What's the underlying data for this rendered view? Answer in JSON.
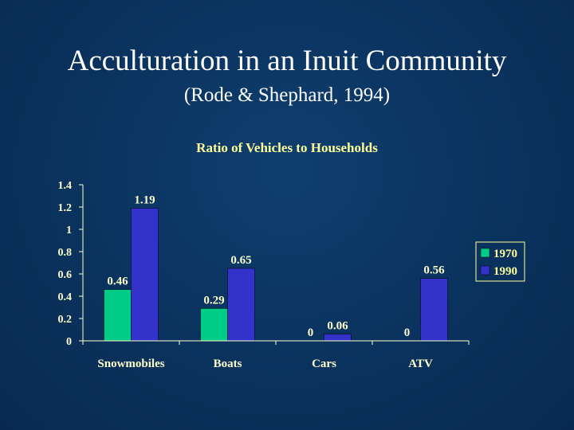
{
  "slide": {
    "title": "Acculturation in an Inuit Community",
    "subtitle": "(Rode & Shephard, 1994)"
  },
  "colors": {
    "series_1970": "#00cc88",
    "series_1990": "#3333cc",
    "axis": "#ffffcc",
    "text": "#ffff99"
  },
  "chart_data": {
    "type": "bar",
    "title": "Ratio of Vehicles to Households",
    "xlabel": "",
    "ylabel": "",
    "categories": [
      "Snowmobiles",
      "Boats",
      "Cars",
      "ATV"
    ],
    "series": [
      {
        "name": "1970",
        "values": [
          0.46,
          0.29,
          0,
          0
        ]
      },
      {
        "name": "1990",
        "values": [
          1.19,
          0.65,
          0.06,
          0.56
        ]
      }
    ],
    "data_labels": [
      [
        "0.46",
        "0.29",
        "0",
        "0"
      ],
      [
        "1.19",
        "0.65",
        "0.06",
        "0.56"
      ]
    ],
    "yticks": [
      "0",
      "0.2",
      "0.4",
      "0.6",
      "0.8",
      "1",
      "1.2",
      "1.4"
    ],
    "ylim": [
      0,
      1.4
    ],
    "grid": false,
    "legend": "right"
  }
}
